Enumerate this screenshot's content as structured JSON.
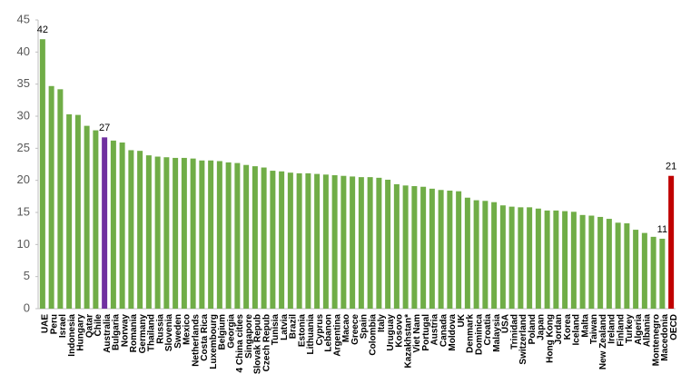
{
  "chart_data": {
    "type": "bar",
    "categories": [
      "UAE",
      "Peru",
      "Israel",
      "Indonesia",
      "Hungary",
      "Qatar",
      "Chile",
      "Australia",
      "Bulgaria",
      "Norway",
      "Romania",
      "Germany",
      "Thailand",
      "Russia",
      "Slovenia",
      "Sweden",
      "Mexico",
      "Netherlands",
      "Costa Rica",
      "Luxembourg",
      "Belgium",
      "Georgia",
      "4 China cities",
      "Singapore",
      "Slovak Repub",
      "Czech Repub",
      "Tunisia",
      "Latvia",
      "Brazil",
      "Estonia",
      "Lithuania",
      "Cyprus",
      "Lebanon",
      "Argentina",
      "Macao",
      "Greece",
      "Spain",
      "Colombia",
      "Italy",
      "Uruguay",
      "Kosovo",
      "Kazakhstan*",
      "Viet Nam",
      "Portugal",
      "Austria",
      "Canada",
      "Moldova",
      "UK",
      "Denmark",
      "Dominica",
      "Croatia",
      "Malaysia",
      "USA",
      "Trinidad",
      "Switzerland",
      "Poland",
      "Japan",
      "Hong Kong",
      "Jordan",
      "Korea",
      "Iceland",
      "Malta",
      "Taiwan",
      "New Zealand",
      "Ireland",
      "Finland",
      "Turkey",
      "Algeria",
      "Albania",
      "Montenegro",
      "Macedonia",
      "OECD"
    ],
    "values": [
      42,
      34.7,
      34.2,
      30.3,
      30.2,
      28.5,
      27.8,
      26.7,
      26.2,
      25.9,
      24.7,
      24.6,
      23.9,
      23.7,
      23.6,
      23.5,
      23.5,
      23.4,
      23.1,
      23.1,
      23.0,
      22.8,
      22.7,
      22.4,
      22.2,
      22.0,
      21.5,
      21.4,
      21.2,
      21.1,
      21.1,
      21.0,
      20.9,
      20.8,
      20.7,
      20.6,
      20.5,
      20.5,
      20.4,
      20.1,
      19.4,
      19.2,
      19.1,
      19.0,
      18.7,
      18.5,
      18.4,
      18.3,
      17.3,
      16.9,
      16.8,
      16.6,
      16.1,
      15.9,
      15.8,
      15.8,
      15.6,
      15.3,
      15.3,
      15.2,
      15.1,
      14.6,
      14.5,
      14.3,
      14.0,
      13.4,
      13.3,
      12.3,
      11.8,
      11.2,
      10.9,
      20.7
    ],
    "value_labels": [
      "42",
      null,
      null,
      null,
      null,
      null,
      null,
      "27",
      null,
      null,
      null,
      null,
      null,
      null,
      null,
      null,
      null,
      null,
      null,
      null,
      null,
      null,
      null,
      null,
      null,
      null,
      null,
      null,
      null,
      null,
      null,
      null,
      null,
      null,
      null,
      null,
      null,
      null,
      null,
      null,
      null,
      null,
      null,
      null,
      null,
      null,
      null,
      null,
      null,
      null,
      null,
      null,
      null,
      null,
      null,
      null,
      null,
      null,
      null,
      null,
      null,
      null,
      null,
      null,
      null,
      null,
      null,
      null,
      null,
      null,
      "11",
      "21"
    ],
    "colors": [
      "#70ad47",
      "#70ad47",
      "#70ad47",
      "#70ad47",
      "#70ad47",
      "#70ad47",
      "#70ad47",
      "#7030a0",
      "#70ad47",
      "#70ad47",
      "#70ad47",
      "#70ad47",
      "#70ad47",
      "#70ad47",
      "#70ad47",
      "#70ad47",
      "#70ad47",
      "#70ad47",
      "#70ad47",
      "#70ad47",
      "#70ad47",
      "#70ad47",
      "#70ad47",
      "#70ad47",
      "#70ad47",
      "#70ad47",
      "#70ad47",
      "#70ad47",
      "#70ad47",
      "#70ad47",
      "#70ad47",
      "#70ad47",
      "#70ad47",
      "#70ad47",
      "#70ad47",
      "#70ad47",
      "#70ad47",
      "#70ad47",
      "#70ad47",
      "#70ad47",
      "#70ad47",
      "#70ad47",
      "#70ad47",
      "#70ad47",
      "#70ad47",
      "#70ad47",
      "#70ad47",
      "#70ad47",
      "#70ad47",
      "#70ad47",
      "#70ad47",
      "#70ad47",
      "#70ad47",
      "#70ad47",
      "#70ad47",
      "#70ad47",
      "#70ad47",
      "#70ad47",
      "#70ad47",
      "#70ad47",
      "#70ad47",
      "#70ad47",
      "#70ad47",
      "#70ad47",
      "#70ad47",
      "#70ad47",
      "#70ad47",
      "#70ad47",
      "#70ad47",
      "#70ad47",
      "#70ad47",
      "#c00000"
    ],
    "ylim": [
      0,
      45
    ],
    "yticks": [
      0,
      5,
      10,
      15,
      20,
      25,
      30,
      35,
      40,
      45
    ],
    "grid": false
  }
}
